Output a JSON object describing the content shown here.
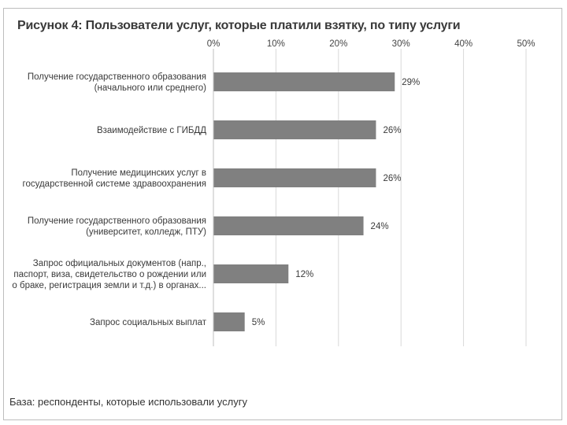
{
  "figure": {
    "title": "Рисунок 4: Пользователи услуг, которые платили взятку, по типу услуги",
    "footnote": "База: респонденты, которые использовали услугу"
  },
  "chart_data": {
    "type": "bar",
    "orientation": "horizontal",
    "categories": [
      [
        "Получение государственного образования",
        "(начального или среднего)"
      ],
      [
        "Взаимодействие с ГИБДД"
      ],
      [
        "Получение медицинских услуг в",
        "государственной системе здравоохранения"
      ],
      [
        "Получение государственного образования",
        "(университет, колледж, ПТУ)"
      ],
      [
        "Запрос официальных документов (напр.,",
        "паспорт, виза, свидетельство о рождении или",
        "о браке, регистрация земли и т.д.) в органах..."
      ],
      [
        "Запрос социальных выплат"
      ]
    ],
    "values": [
      29,
      26,
      26,
      24,
      12,
      5
    ],
    "value_labels": [
      "29%",
      "26%",
      "26%",
      "24%",
      "12%",
      "5%"
    ],
    "xlim": [
      0,
      50
    ],
    "ticks": [
      0,
      10,
      20,
      30,
      40,
      50
    ],
    "tick_labels": [
      "0%",
      "10%",
      "20%",
      "30%",
      "40%",
      "50%"
    ],
    "xaxis_position": "top",
    "grid": "vertical",
    "bar_color": "#808080",
    "grid_color": "#d9d9d9"
  }
}
